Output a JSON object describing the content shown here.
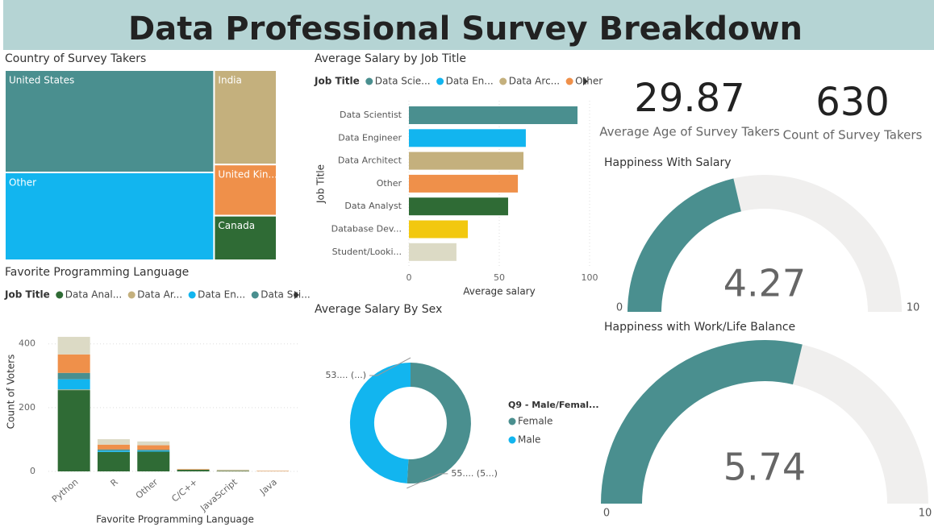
{
  "title": "Data Professional Survey Breakdown",
  "kpis": [
    {
      "value": 29.87,
      "label": "Average Age of Survey Takers"
    },
    {
      "value": 630,
      "label": "Count of Survey Takers"
    }
  ],
  "chart_data": [
    {
      "type": "treemap",
      "title": "Country of Survey Takers",
      "categories": [
        "United States",
        "Other",
        "India",
        "United Kin...",
        "Canada"
      ],
      "values": [
        261,
        224,
        72,
        39,
        34
      ],
      "colors": [
        "#4a8f8f",
        "#12b5ef",
        "#c4b07d",
        "#ef904a",
        "#2f6b35"
      ]
    },
    {
      "type": "bar",
      "orientation": "horizontal",
      "title": "Average Salary by Job Title",
      "legend": {
        "title": "Job Title",
        "entries": [
          {
            "name": "Data Scie...",
            "color": "#4a8f8f"
          },
          {
            "name": "Data En...",
            "color": "#12b5ef"
          },
          {
            "name": "Data Arc...",
            "color": "#c4b07d"
          },
          {
            "name": "Other",
            "color": "#ef904a"
          }
        ]
      },
      "categories": [
        "Data Scientist",
        "Data Engineer",
        "Data Architect",
        "Other",
        "Data Analyst",
        "Database Dev...",
        "Student/Looki..."
      ],
      "values": [
        93.3,
        64.7,
        63.4,
        60.3,
        54.9,
        32.6,
        26.3
      ],
      "colors": [
        "#4a8f8f",
        "#12b5ef",
        "#c4b07d",
        "#ef904a",
        "#2f6b35",
        "#f2c80f",
        "#dcdac5"
      ],
      "xlim": [
        0,
        100
      ],
      "xticks": [
        0,
        50,
        100
      ],
      "xlabel": "Average salary",
      "ylabel": "Job Title"
    },
    {
      "type": "bar",
      "stacked": true,
      "title": "Favorite Programming Language",
      "legend_title": "Job Title",
      "categories": [
        "Python",
        "R",
        "Other",
        "C/C++",
        "JavaScript",
        "Java"
      ],
      "series": [
        {
          "name": "Data Anal...",
          "color": "#2f6b35",
          "values": [
            255,
            61,
            62,
            5,
            2,
            0
          ]
        },
        {
          "name": "Data Ar...",
          "color": "#c4b07d",
          "values": [
            2,
            0,
            0,
            0,
            0,
            1
          ]
        },
        {
          "name": "Data En...",
          "color": "#12b5ef",
          "values": [
            32,
            4,
            3,
            0,
            0,
            0
          ]
        },
        {
          "name": "Data Sci...",
          "color": "#4a8f8f",
          "values": [
            20,
            4,
            3,
            0,
            0,
            0
          ]
        },
        {
          "color": "#ef904a",
          "values": [
            58,
            15,
            14,
            2,
            1,
            1
          ]
        },
        {
          "color": "#dcdac5",
          "values": [
            55,
            17,
            12,
            1,
            3,
            0
          ]
        }
      ],
      "ylim": [
        0,
        460
      ],
      "yticks": [
        0,
        200,
        400
      ],
      "xlabel": "Favorite Programming Language",
      "ylabel": "Count of Voters"
    },
    {
      "type": "donut",
      "title": "Average Salary By Sex",
      "legend_title": "Q9 - Male/Femal...",
      "categories": [
        "Female",
        "Male"
      ],
      "values": [
        55.5,
        53.5
      ],
      "value_labels": [
        "55.... (5...)",
        "53.... (...)"
      ],
      "colors": [
        "#4a8f8f",
        "#12b5ef"
      ]
    },
    {
      "type": "gauge",
      "title": "Happiness With Salary",
      "value": 4.27,
      "min": 0,
      "max": 10,
      "color": "#4a8f8f"
    },
    {
      "type": "gauge",
      "title": "Happiness with Work/Life Balance",
      "value": 5.74,
      "min": 0,
      "max": 10,
      "color": "#4a8f8f"
    }
  ]
}
